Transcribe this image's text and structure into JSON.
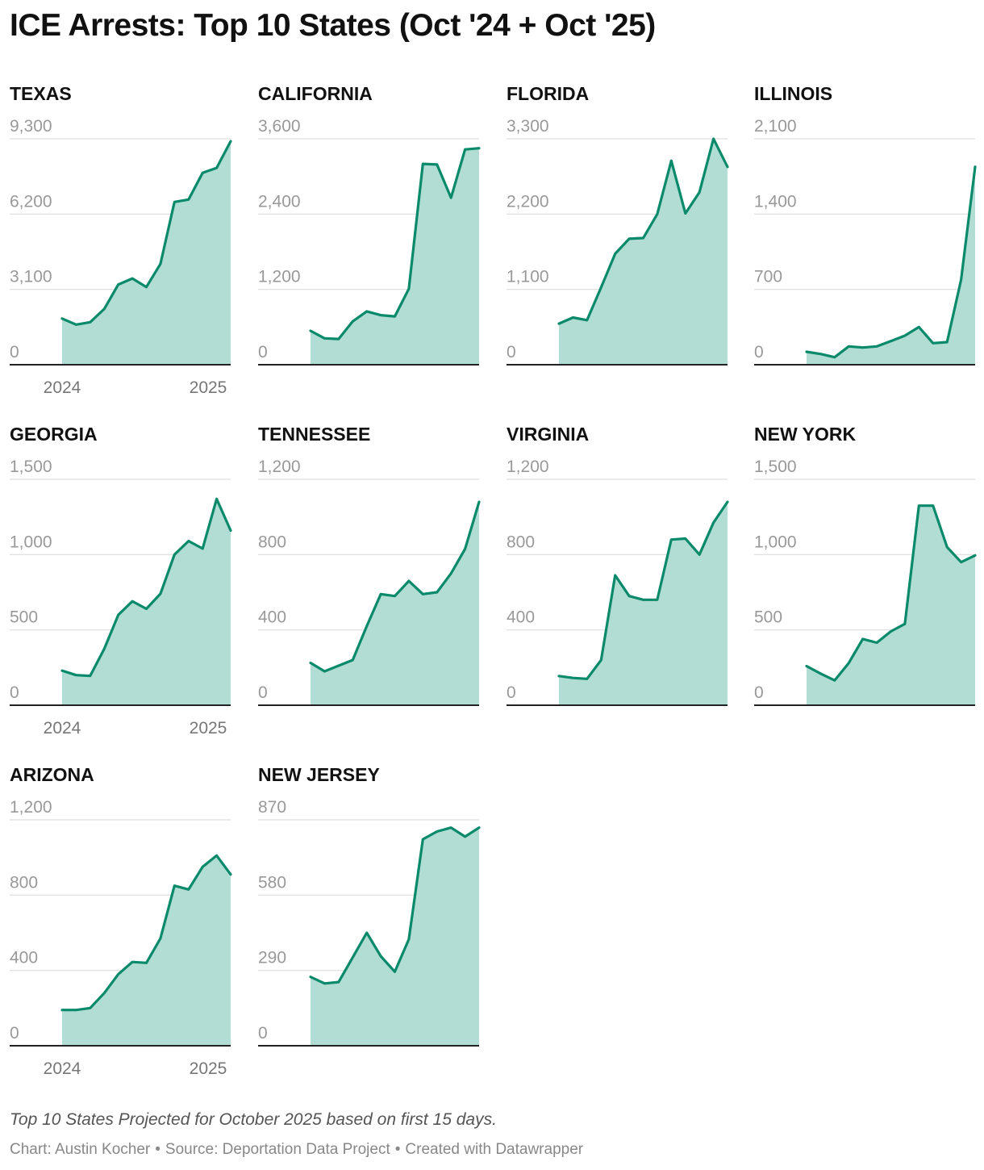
{
  "title": "ICE Arrests: Top 10 States (Oct '24 + Oct '25)",
  "notes": "Top 10 States Projected for October 2025 based on first 15 days.",
  "footer": {
    "credit": "Chart: Austin Kocher",
    "source": "Source: Deportation Data Project",
    "tool": "Created with Datawrapper",
    "separator": "•"
  },
  "colors": {
    "line": "#0a8a6a",
    "area": "#b2ddd4",
    "grid": "#dddddd",
    "axis": "#222222",
    "tick": "#999999",
    "xtick": "#777777"
  },
  "chart_data": [
    {
      "type": "area",
      "title": "TEXAS",
      "yticks": [
        "0",
        "3,100",
        "6,200",
        "9,300"
      ],
      "ylim": [
        0,
        9300
      ],
      "xticks": [
        "2024",
        "2025"
      ],
      "values": [
        1900,
        1650,
        1750,
        2300,
        3300,
        3550,
        3200,
        4150,
        6700,
        6800,
        7900,
        8100,
        9200
      ]
    },
    {
      "type": "area",
      "title": "CALIFORNIA",
      "yticks": [
        "0",
        "1,200",
        "2,400",
        "3,600"
      ],
      "ylim": [
        0,
        3600
      ],
      "xticks": [],
      "values": [
        540,
        420,
        410,
        690,
        850,
        790,
        770,
        1210,
        3200,
        3190,
        2660,
        3430,
        3450
      ]
    },
    {
      "type": "area",
      "title": "FLORIDA",
      "yticks": [
        "0",
        "1,100",
        "2,200",
        "3,300"
      ],
      "ylim": [
        0,
        3300
      ],
      "xticks": [],
      "values": [
        600,
        690,
        650,
        1130,
        1620,
        1840,
        1850,
        2200,
        2980,
        2210,
        2520,
        3300,
        2890
      ]
    },
    {
      "type": "area",
      "title": "ILLINOIS",
      "yticks": [
        "0",
        "700",
        "1,400",
        "2,100"
      ],
      "ylim": [
        0,
        2100
      ],
      "xticks": [],
      "values": [
        120,
        100,
        70,
        170,
        160,
        170,
        220,
        270,
        350,
        200,
        210,
        790,
        1840
      ]
    },
    {
      "type": "area",
      "title": "GEORGIA",
      "yticks": [
        "0",
        "500",
        "1,000",
        "1,500"
      ],
      "ylim": [
        0,
        1500
      ],
      "xticks": [
        "2024",
        "2025"
      ],
      "values": [
        230,
        200,
        195,
        375,
        600,
        690,
        640,
        740,
        1000,
        1090,
        1040,
        1370,
        1160
      ]
    },
    {
      "type": "area",
      "title": "TENNESSEE",
      "yticks": [
        "0",
        "400",
        "800",
        "1,200"
      ],
      "ylim": [
        0,
        1200
      ],
      "xticks": [],
      "values": [
        225,
        180,
        210,
        240,
        420,
        590,
        580,
        660,
        590,
        600,
        700,
        830,
        1080
      ]
    },
    {
      "type": "area",
      "title": "VIRGINIA",
      "yticks": [
        "0",
        "400",
        "800",
        "1,200"
      ],
      "ylim": [
        0,
        1200
      ],
      "xticks": [],
      "values": [
        155,
        145,
        140,
        240,
        690,
        580,
        560,
        560,
        880,
        885,
        800,
        970,
        1080
      ]
    },
    {
      "type": "area",
      "title": "NEW YORK",
      "yticks": [
        "0",
        "500",
        "1,000",
        "1,500"
      ],
      "ylim": [
        0,
        1500
      ],
      "xticks": [],
      "values": [
        260,
        210,
        165,
        280,
        440,
        415,
        490,
        540,
        1325,
        1325,
        1050,
        950,
        995
      ]
    },
    {
      "type": "area",
      "title": "ARIZONA",
      "yticks": [
        "0",
        "400",
        "800",
        "1,200"
      ],
      "ylim": [
        0,
        1200
      ],
      "xticks": [
        "2024",
        "2025"
      ],
      "values": [
        190,
        190,
        200,
        280,
        380,
        445,
        440,
        570,
        850,
        830,
        950,
        1010,
        910
      ]
    },
    {
      "type": "area",
      "title": "NEW JERSEY",
      "yticks": [
        "0",
        "290",
        "580",
        "870"
      ],
      "ylim": [
        0,
        870
      ],
      "xticks": [],
      "values": [
        265,
        240,
        245,
        340,
        435,
        345,
        285,
        410,
        795,
        825,
        840,
        805,
        840
      ]
    }
  ]
}
